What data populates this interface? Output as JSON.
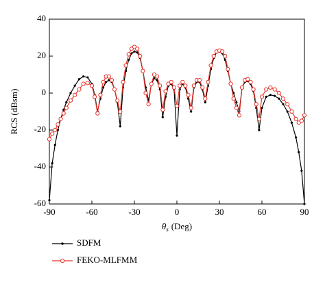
{
  "chart_data": {
    "type": "line",
    "y_label": "RCS (dBsm)",
    "x_label_symbol": "θ",
    "x_label_subscript": "s",
    "x_label_unit": "(Deg)",
    "x": [
      -90,
      -88,
      -86,
      -84,
      -82,
      -80,
      -78,
      -75,
      -72,
      -69,
      -66,
      -63,
      -60,
      -58,
      -56,
      -54,
      -52,
      -50,
      -48,
      -46,
      -44,
      -42,
      -40,
      -38,
      -36,
      -34,
      -32,
      -30,
      -28,
      -26,
      -24,
      -22,
      -20,
      -18,
      -16,
      -14,
      -12,
      -10,
      -8,
      -6,
      -4,
      -2,
      0,
      2,
      4,
      6,
      8,
      10,
      12,
      14,
      16,
      18,
      20,
      22,
      24,
      26,
      28,
      30,
      32,
      34,
      36,
      38,
      40,
      42,
      44,
      46,
      48,
      50,
      52,
      54,
      56,
      58,
      60,
      63,
      66,
      69,
      72,
      75,
      78,
      81,
      84,
      86,
      88,
      90
    ],
    "series": [
      {
        "name": "SDFM",
        "color": "#000000",
        "marker": "dot",
        "values": [
          -58,
          -38,
          -28,
          -20,
          -14,
          -9,
          -5,
          0,
          4,
          7.5,
          9,
          8.5,
          5,
          -1,
          -10,
          -3,
          3,
          6,
          7,
          6,
          2,
          -5,
          -18,
          3,
          12,
          18,
          21.5,
          22.5,
          22,
          19,
          12,
          3,
          -4,
          5,
          8,
          7,
          2,
          -13,
          -2,
          4,
          5,
          2,
          -23,
          2,
          5,
          3,
          -3,
          -10,
          3,
          6,
          6,
          2,
          -5,
          4,
          13,
          19,
          22,
          22.5,
          21.5,
          18,
          12,
          5,
          0,
          -5,
          -10,
          3,
          6,
          6.5,
          5,
          1,
          -8,
          -20,
          -8,
          -2,
          -1,
          -1.5,
          -3,
          -6,
          -10,
          -16,
          -24,
          -32,
          -42,
          -60
        ]
      },
      {
        "name": "FEKO-MLFMM",
        "color": "#e8352b",
        "marker": "circle",
        "values": [
          -25,
          -22,
          -20,
          -17,
          -14,
          -11,
          -8,
          -4,
          -1,
          2,
          5,
          5.5,
          4,
          -2,
          -11,
          -1,
          6,
          9,
          9,
          7,
          2,
          -4,
          -10,
          6,
          15,
          21,
          24,
          25,
          24,
          20,
          12,
          0,
          -6,
          5,
          10,
          9,
          4,
          -9,
          1,
          5,
          6,
          3,
          -7,
          4,
          6,
          4,
          -1,
          -8,
          4,
          7,
          7,
          3,
          -3,
          6,
          15,
          20,
          22.5,
          23,
          22.5,
          20,
          13,
          5,
          -3,
          -8,
          -12,
          3,
          7,
          7.5,
          6,
          2,
          -6,
          -14,
          -2,
          2,
          3,
          2,
          0,
          -3,
          -6,
          -10,
          -14,
          -16,
          -15,
          -12
        ]
      }
    ],
    "xlim": [
      -90,
      90
    ],
    "xticks": [
      -90,
      -60,
      -30,
      0,
      30,
      60,
      90
    ],
    "ylim": [
      -60,
      40
    ],
    "yticks": [
      -60,
      -40,
      -20,
      0,
      20,
      40
    ]
  }
}
